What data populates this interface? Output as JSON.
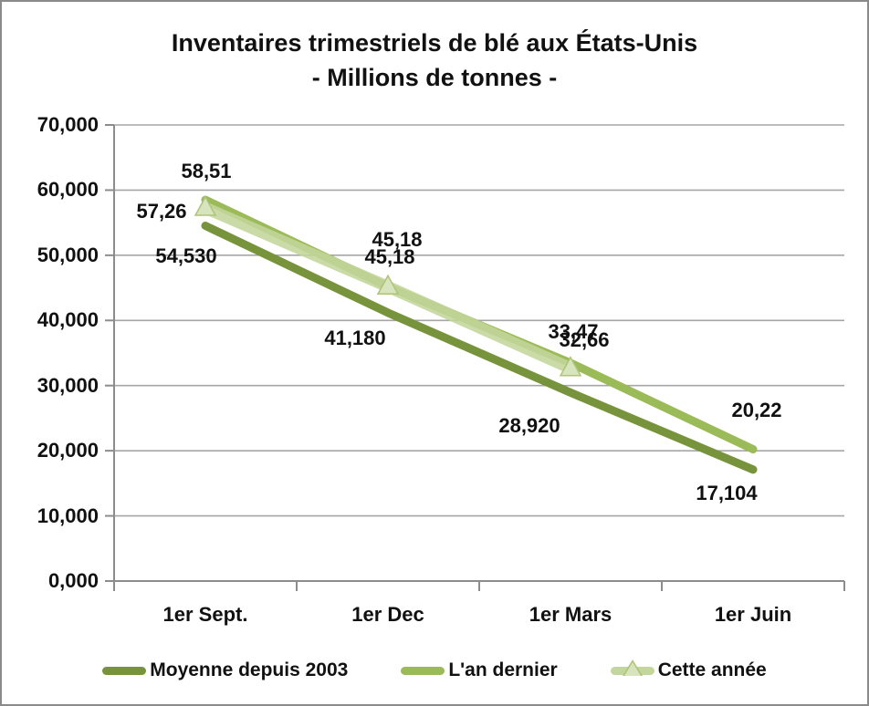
{
  "chart_data": {
    "type": "line",
    "title_line1": "Inventaires trimestriels de blé aux États-Unis",
    "title_line2": "- Millions de tonnes -",
    "categories": [
      "1er Sept.",
      "1er Dec",
      "1er Mars",
      "1er Juin"
    ],
    "y_axis": {
      "min": 0,
      "max": 70,
      "step": 10,
      "tick_labels": [
        "0,000",
        "10,000",
        "20,000",
        "30,000",
        "40,000",
        "50,000",
        "60,000",
        "70,000"
      ]
    },
    "grid": true,
    "legend_position": "bottom",
    "colors": {
      "gridline": "#A6A6A6",
      "axis": "#8C8C8C",
      "border": "#8A8A8A",
      "text": "#111111"
    },
    "series": [
      {
        "name": "Moyenne depuis 2003",
        "color": "#77933C",
        "marker": "none",
        "line_width": 9,
        "values": [
          54.53,
          41.18,
          28.92,
          17.104
        ],
        "labels": [
          "54,530",
          "41,180",
          "28,920",
          "17,104"
        ],
        "label_offsets": [
          [
            -21,
            33
          ],
          [
            -36,
            28
          ],
          [
            -45,
            37
          ],
          [
            -29,
            26
          ]
        ]
      },
      {
        "name": "L'an dernier",
        "color": "#9BBB59",
        "marker": "none",
        "line_width": 9,
        "values": [
          58.51,
          45.18,
          33.47,
          20.22
        ],
        "labels": [
          "58,51",
          "45,18",
          "33,47",
          "20,22"
        ],
        "label_offsets": [
          [
            1,
            -31
          ],
          [
            10,
            -51
          ],
          [
            3,
            -34
          ],
          [
            4,
            -43
          ]
        ]
      },
      {
        "name": "Cette année",
        "color": "#C3D69B",
        "marker": "triangle",
        "marker_fill": "#D7E4BD",
        "marker_stroke": "#AFC479",
        "line_width": 13,
        "opacity": 0.88,
        "values": [
          57.26,
          45.18,
          32.66
        ],
        "labels": [
          "57,26",
          "45,18",
          "32,66"
        ],
        "label_offsets": [
          [
            -48,
            4
          ],
          [
            2,
            -32
          ],
          [
            15,
            -31
          ]
        ]
      }
    ]
  }
}
